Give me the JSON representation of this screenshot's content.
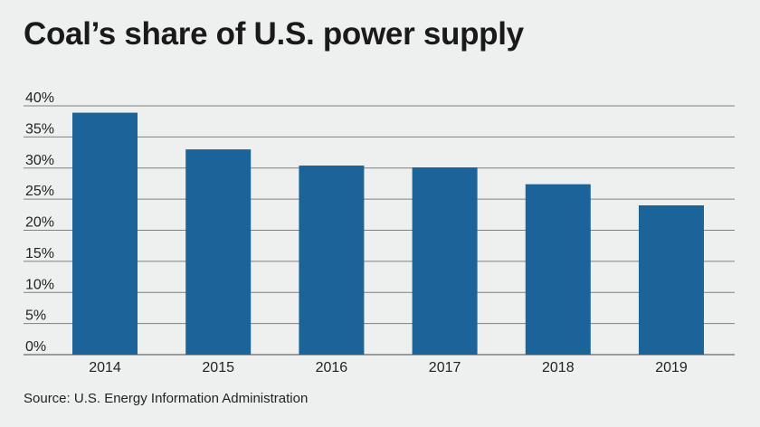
{
  "title": "Coal’s share of U.S. power supply",
  "source": "Source: U.S. Energy Information Administration",
  "colors": {
    "bar": "#1a649a",
    "grid": "#7f7f7f",
    "background": "#eef0ef"
  },
  "chart_data": {
    "type": "bar",
    "categories": [
      "2014",
      "2015",
      "2016",
      "2017",
      "2018",
      "2019"
    ],
    "values": [
      38.9,
      33,
      30.4,
      30.1,
      27.4,
      24
    ],
    "ylim": [
      0,
      40
    ],
    "yticks": [
      0,
      5,
      10,
      15,
      20,
      25,
      30,
      35,
      40
    ],
    "ytick_labels": [
      "0%",
      "5%",
      "10%",
      "15%",
      "20%",
      "25%",
      "30%",
      "35%",
      "40%"
    ],
    "grid": true
  }
}
